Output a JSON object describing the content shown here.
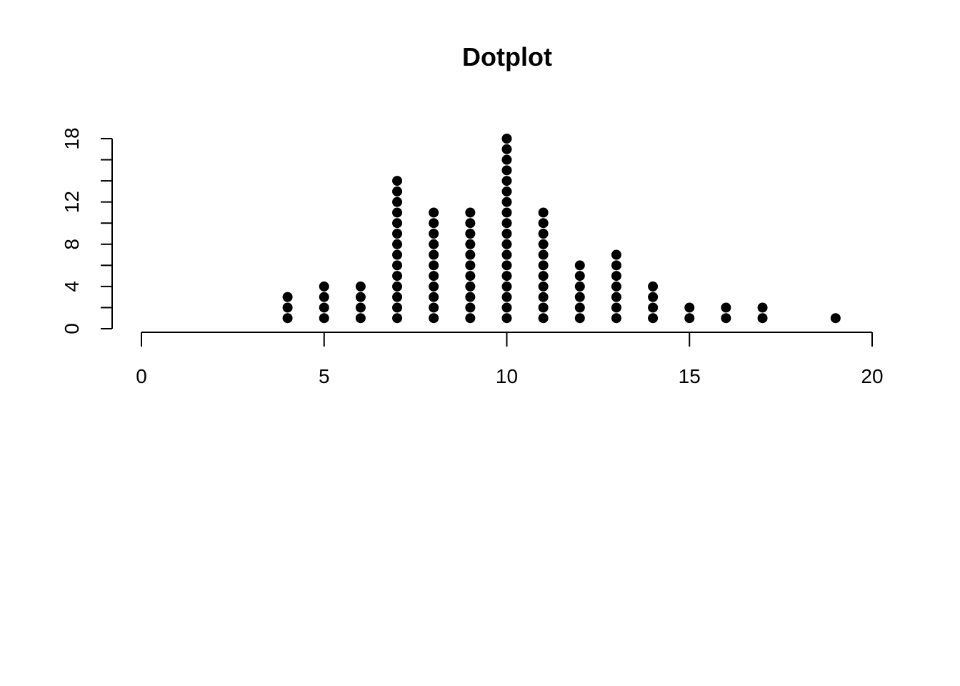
{
  "chart_data": {
    "type": "scatter",
    "subtype": "dotplot",
    "title": "Dotplot",
    "xlabel": "",
    "ylabel": "",
    "x": [
      4,
      5,
      6,
      7,
      8,
      9,
      10,
      11,
      12,
      13,
      14,
      15,
      16,
      17,
      19
    ],
    "counts": [
      3,
      4,
      4,
      14,
      11,
      11,
      18,
      11,
      6,
      7,
      4,
      2,
      2,
      2,
      1
    ],
    "xlim": [
      0,
      20
    ],
    "ylim": [
      0,
      18
    ],
    "x_ticks": [
      0,
      5,
      10,
      15,
      20
    ],
    "y_ticks": [
      0,
      4,
      8,
      12,
      18
    ],
    "y_minor_ticks": [
      0,
      2,
      4,
      6,
      8,
      10,
      12,
      14,
      16,
      18
    ],
    "x_tick_labels": [
      "0",
      "5",
      "10",
      "15",
      "20"
    ],
    "y_tick_labels": [
      "0",
      "4",
      "8",
      "12",
      "18"
    ],
    "grid": false,
    "legend": "none",
    "dot_color": "#000000"
  }
}
